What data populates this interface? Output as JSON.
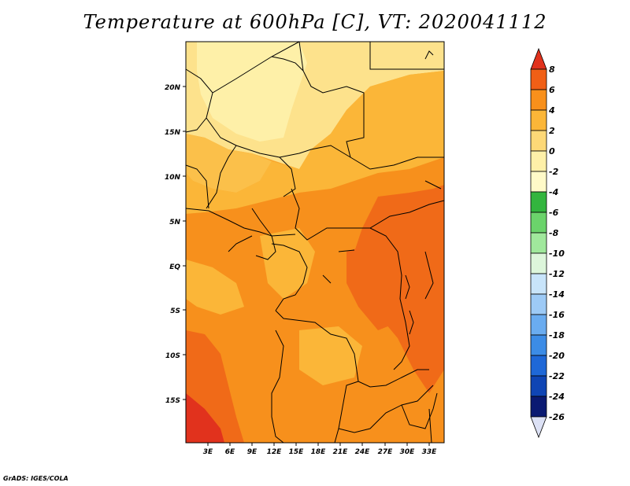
{
  "title": "Temperature at 600hPa [C], VT: 2020041112",
  "credit": "GrADS: IGES/COLA",
  "lat_labels": [
    "20N",
    "15N",
    "10N",
    "5N",
    "EQ",
    "5S",
    "10S",
    "15S"
  ],
  "lon_labels": [
    "3E",
    "6E",
    "9E",
    "12E",
    "15E",
    "18E",
    "21E",
    "24E",
    "27E",
    "30E",
    "33E"
  ],
  "colorbar": {
    "labels": [
      "8",
      "6",
      "4",
      "2",
      "0",
      "-2",
      "-4",
      "-6",
      "-8",
      "-10",
      "-12",
      "-14",
      "-16",
      "-18",
      "-20",
      "-22",
      "-24",
      "-26"
    ],
    "colors": [
      "#e1321d",
      "#f05f16",
      "#f8901b",
      "#fbb638",
      "#fdd877",
      "#fef0a8",
      "#fffac8",
      "#33b53e",
      "#6bd36b",
      "#a0e89c",
      "#ddf6db",
      "#c8e4fa",
      "#9dcaf6",
      "#6aacf0",
      "#3c8ce6",
      "#1f68d7",
      "#0f45b4",
      "#0a1a72"
    ],
    "top_arrow_color": "#e1321d",
    "bottom_arrow_color": "#dce1f5"
  },
  "palette": {
    "outline": "#000000",
    "deep": "#f06a18",
    "warm": "#f7901c",
    "mid": "#f9a62d",
    "light": "#fbc04a",
    "pale": "#fde28c"
  }
}
